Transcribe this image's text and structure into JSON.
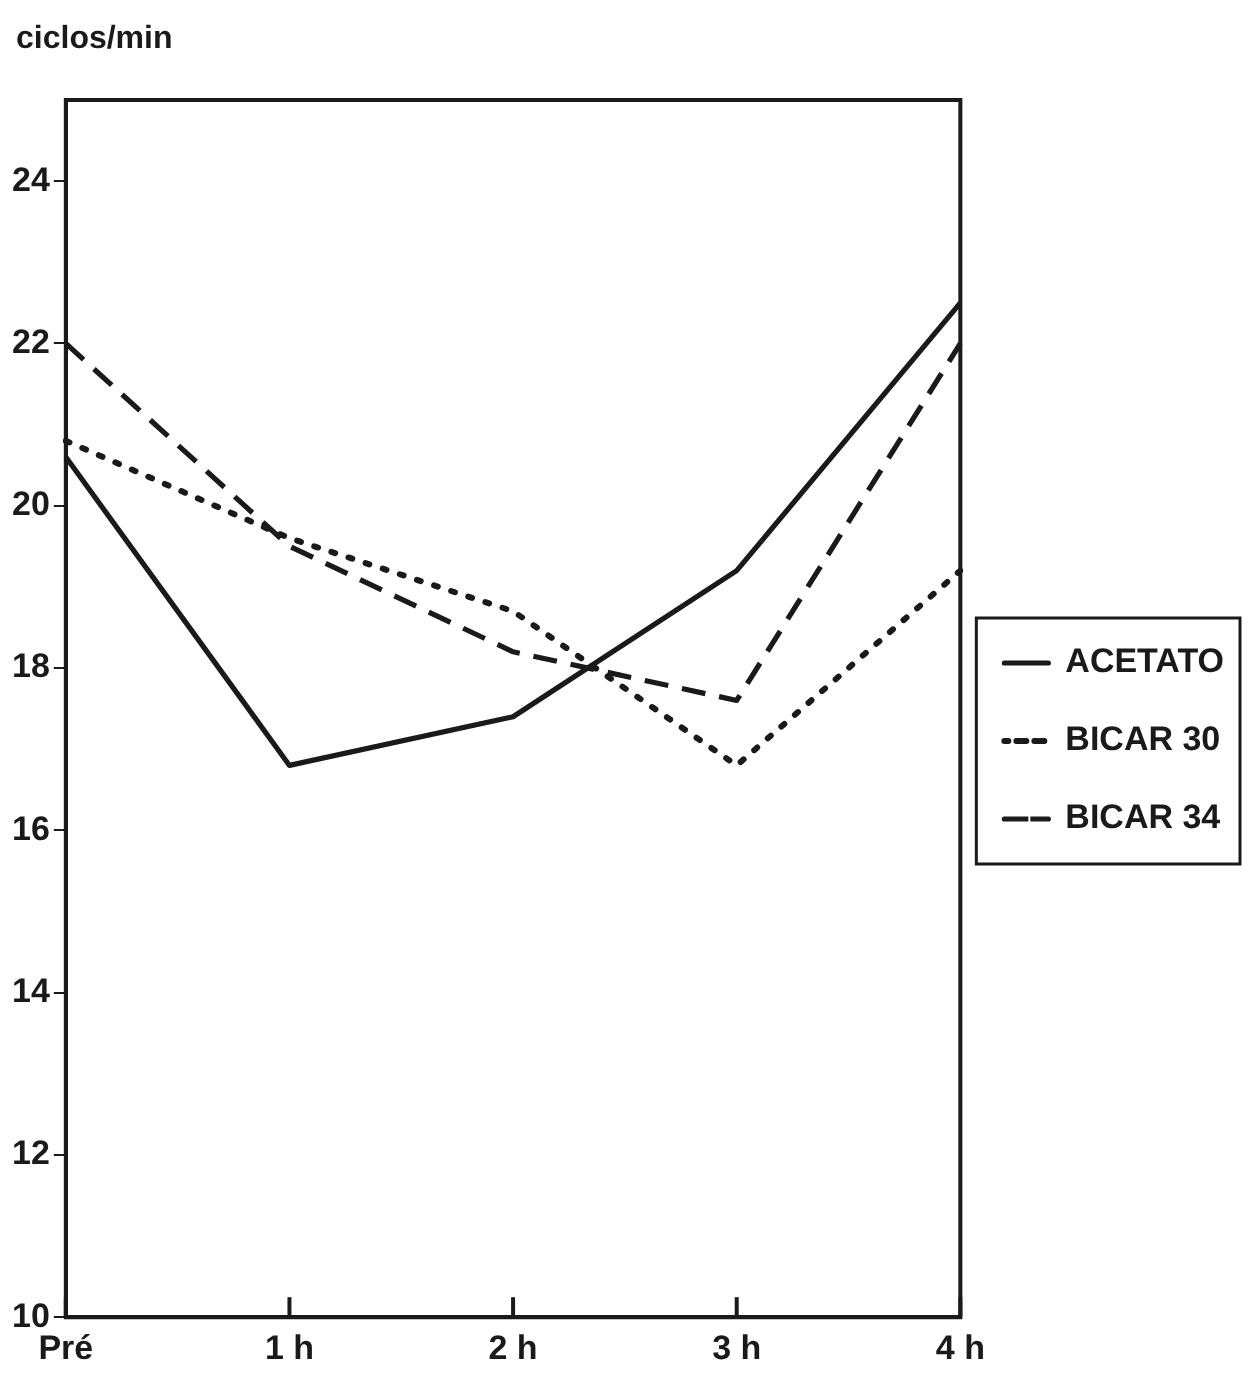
{
  "chart_data": {
    "type": "line",
    "ylabel": "ciclos/min",
    "categories": [
      "Pré",
      "1 h",
      "2 h",
      "3 h",
      "4 h"
    ],
    "ylim": [
      10,
      25
    ],
    "yticks": [
      10,
      12,
      14,
      16,
      18,
      20,
      22,
      24
    ],
    "grid": false,
    "legend": "right",
    "marker": "none",
    "series": [
      {
        "name": "ACETATO",
        "color": "#1a1a1a",
        "line_style": "solid",
        "values": [
          20.6,
          16.8,
          17.4,
          19.2,
          22.5
        ]
      },
      {
        "name": "BICAR 30",
        "color": "#1a1a1a",
        "line_style": "dotted",
        "values": [
          20.8,
          19.6,
          18.7,
          16.8,
          19.2
        ]
      },
      {
        "name": "BICAR 34",
        "color": "#1a1a1a",
        "line_style": "dashed",
        "values": [
          22.0,
          19.5,
          18.2,
          17.6,
          22.0
        ]
      }
    ]
  }
}
